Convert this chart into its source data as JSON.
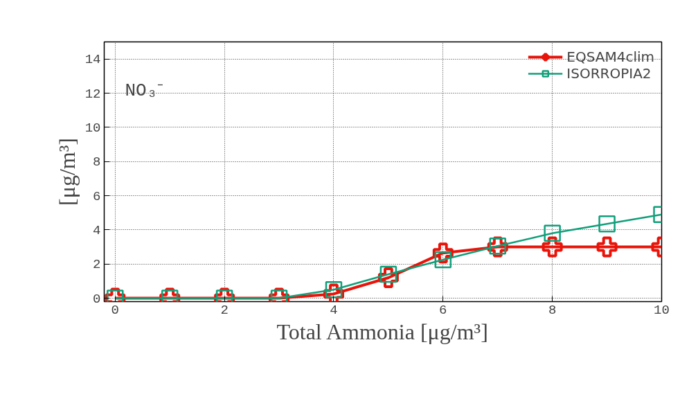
{
  "chart_data": {
    "type": "line",
    "xlabel": "Total Ammonia [μg/m³]",
    "ylabel": "[μg/m³]",
    "annotations": [
      "NO₃⁻"
    ],
    "x": [
      0,
      1,
      2,
      3,
      4,
      5,
      6,
      7,
      8,
      9,
      10
    ],
    "series": [
      {
        "name": "EQSAM4clim",
        "color": "#e8140a",
        "marker": "cross",
        "values": [
          0,
          0,
          0,
          0,
          0.25,
          1.2,
          2.65,
          3,
          3,
          3,
          3
        ]
      },
      {
        "name": "ISORROPIA2",
        "color": "#119f7a",
        "marker": "square",
        "values": [
          0,
          0,
          0,
          0,
          0.5,
          1.4,
          2.25,
          3.05,
          3.8,
          4.35,
          4.9
        ]
      }
    ],
    "xlim": [
      -0.2,
      10
    ],
    "ylim": [
      -0.2,
      15
    ],
    "xticks": [
      0,
      2,
      4,
      6,
      8,
      10
    ],
    "yticks": [
      0,
      2,
      4,
      6,
      8,
      10,
      12,
      14
    ],
    "grid": true,
    "legend": "top right",
    "line_style": "solid"
  }
}
